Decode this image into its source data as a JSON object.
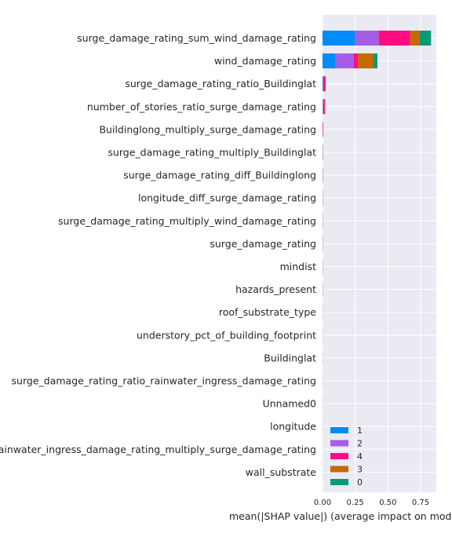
{
  "chart_data": {
    "type": "bar",
    "orientation": "horizontal",
    "stacked": true,
    "xlabel": "mean(|SHAP value|) (average impact on model o",
    "xlim": [
      0,
      0.87
    ],
    "xticks": [
      0.0,
      0.25,
      0.5,
      0.75
    ],
    "xtick_labels": [
      "0.00",
      "0.25",
      "0.50",
      "0.75"
    ],
    "grid": true,
    "legend_position": "lower-right",
    "categories": [
      "surge_damage_rating_sum_wind_damage_rating",
      "wind_damage_rating",
      "surge_damage_rating_ratio_Buildinglat",
      "number_of_stories_ratio_surge_damage_rating",
      "Buildinglong_multiply_surge_damage_rating",
      "surge_damage_rating_multiply_Buildinglat",
      "surge_damage_rating_diff_Buildinglong",
      "longitude_diff_surge_damage_rating",
      "surge_damage_rating_multiply_wind_damage_rating",
      "surge_damage_rating",
      "mindist",
      "hazards_present",
      "roof_substrate_type",
      "understory_pct_of_building_footprint",
      "Buildinglat",
      "surge_damage_rating_ratio_rainwater_ingress_damage_rating",
      "Unnamed0",
      "longitude",
      "rainwater_ingress_damage_rating_multiply_surge_damage_rating",
      "wall_substrate"
    ],
    "series": [
      {
        "name": "1",
        "color": "#008bfb",
        "values": [
          0.25,
          0.1,
          0.003,
          0.002,
          0.001,
          0.0008,
          0.0007,
          0.0006,
          0.0005,
          0.0005,
          0.0004,
          0.0004,
          0.0003,
          0.0003,
          0.0003,
          0.0002,
          0.0002,
          0.0002,
          0.0001,
          0.0001
        ]
      },
      {
        "name": "2",
        "color": "#a45ee5",
        "values": [
          0.18,
          0.14,
          0.006,
          0.003,
          0.001,
          0.0008,
          0.0007,
          0.0006,
          0.0005,
          0.0005,
          0.0004,
          0.0004,
          0.0003,
          0.0003,
          0.0003,
          0.0002,
          0.0002,
          0.0002,
          0.0001,
          0.0001
        ]
      },
      {
        "name": "4",
        "color": "#ff0c82",
        "values": [
          0.24,
          0.03,
          0.012,
          0.012,
          0.003,
          0.0008,
          0.0007,
          0.0006,
          0.0005,
          0.0005,
          0.0004,
          0.0004,
          0.0003,
          0.0003,
          0.0003,
          0.0002,
          0.0002,
          0.0002,
          0.0001,
          0.0001
        ]
      },
      {
        "name": "3",
        "color": "#c46a00",
        "values": [
          0.07,
          0.12,
          0.003,
          0.003,
          0.001,
          0.0008,
          0.0007,
          0.0006,
          0.0005,
          0.0005,
          0.0004,
          0.0004,
          0.0003,
          0.0003,
          0.0003,
          0.0002,
          0.0002,
          0.0002,
          0.0001,
          0.0001
        ]
      },
      {
        "name": "0",
        "color": "#0b9977",
        "values": [
          0.09,
          0.03,
          0.001,
          0.001,
          0.0005,
          0.0008,
          0.0007,
          0.0006,
          0.0005,
          0.0005,
          0.0004,
          0.0004,
          0.0003,
          0.0003,
          0.0003,
          0.0002,
          0.0002,
          0.0002,
          0.0001,
          0.0001
        ]
      }
    ]
  }
}
